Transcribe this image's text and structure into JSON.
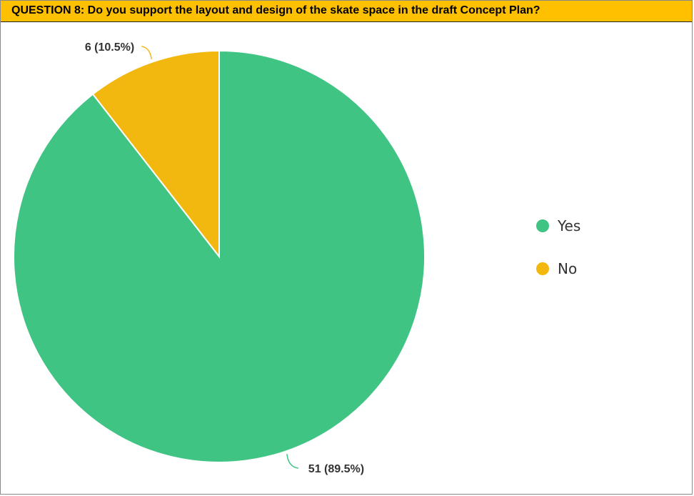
{
  "header": {
    "title": "QUESTION 8: Do you support the layout and design of the skate space in the draft Concept Plan?"
  },
  "chart_data": {
    "type": "pie",
    "title": "QUESTION 8: Do you support the layout and design of the skate space in the draft Concept Plan?",
    "categories": [
      "Yes",
      "No"
    ],
    "values": [
      51,
      6
    ],
    "percentages": [
      89.5,
      10.5
    ],
    "data_labels": [
      "51 (89.5%)",
      "6 (10.5%)"
    ],
    "colors": [
      "#40c484",
      "#f2b810"
    ],
    "legend_placement": "right"
  }
}
